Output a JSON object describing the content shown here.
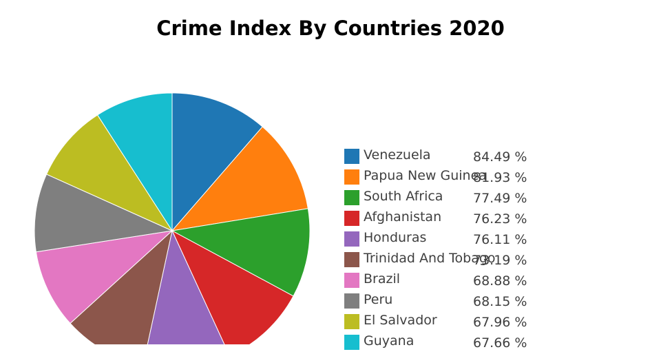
{
  "chart_data": {
    "type": "pie",
    "title": "Crime Index By Countries 2020",
    "legend_position": "right",
    "slices": [
      {
        "label": "Venezuela",
        "value": 84.49,
        "display": "84.49 %",
        "color": "#1f77b4"
      },
      {
        "label": "Papua New Guinea",
        "value": 81.93,
        "display": "81.93 %",
        "color": "#ff7f0e"
      },
      {
        "label": "South Africa",
        "value": 77.49,
        "display": "77.49 %",
        "color": "#2ca02c"
      },
      {
        "label": "Afghanistan",
        "value": 76.23,
        "display": "76.23 %",
        "color": "#d62728"
      },
      {
        "label": "Honduras",
        "value": 76.11,
        "display": "76.11 %",
        "color": "#9467bd"
      },
      {
        "label": "Trinidad And Tobago",
        "value": 73.19,
        "display": "73.19 %",
        "color": "#8c564b"
      },
      {
        "label": "Brazil",
        "value": 68.88,
        "display": "68.88 %",
        "color": "#e377c2"
      },
      {
        "label": "Peru",
        "value": 68.15,
        "display": "68.15 %",
        "color": "#7f7f7f"
      },
      {
        "label": "El Salvador",
        "value": 67.96,
        "display": "67.96 %",
        "color": "#bcbd22"
      },
      {
        "label": "Guyana",
        "value": 67.66,
        "display": "67.66 %",
        "color": "#17becf"
      }
    ]
  }
}
